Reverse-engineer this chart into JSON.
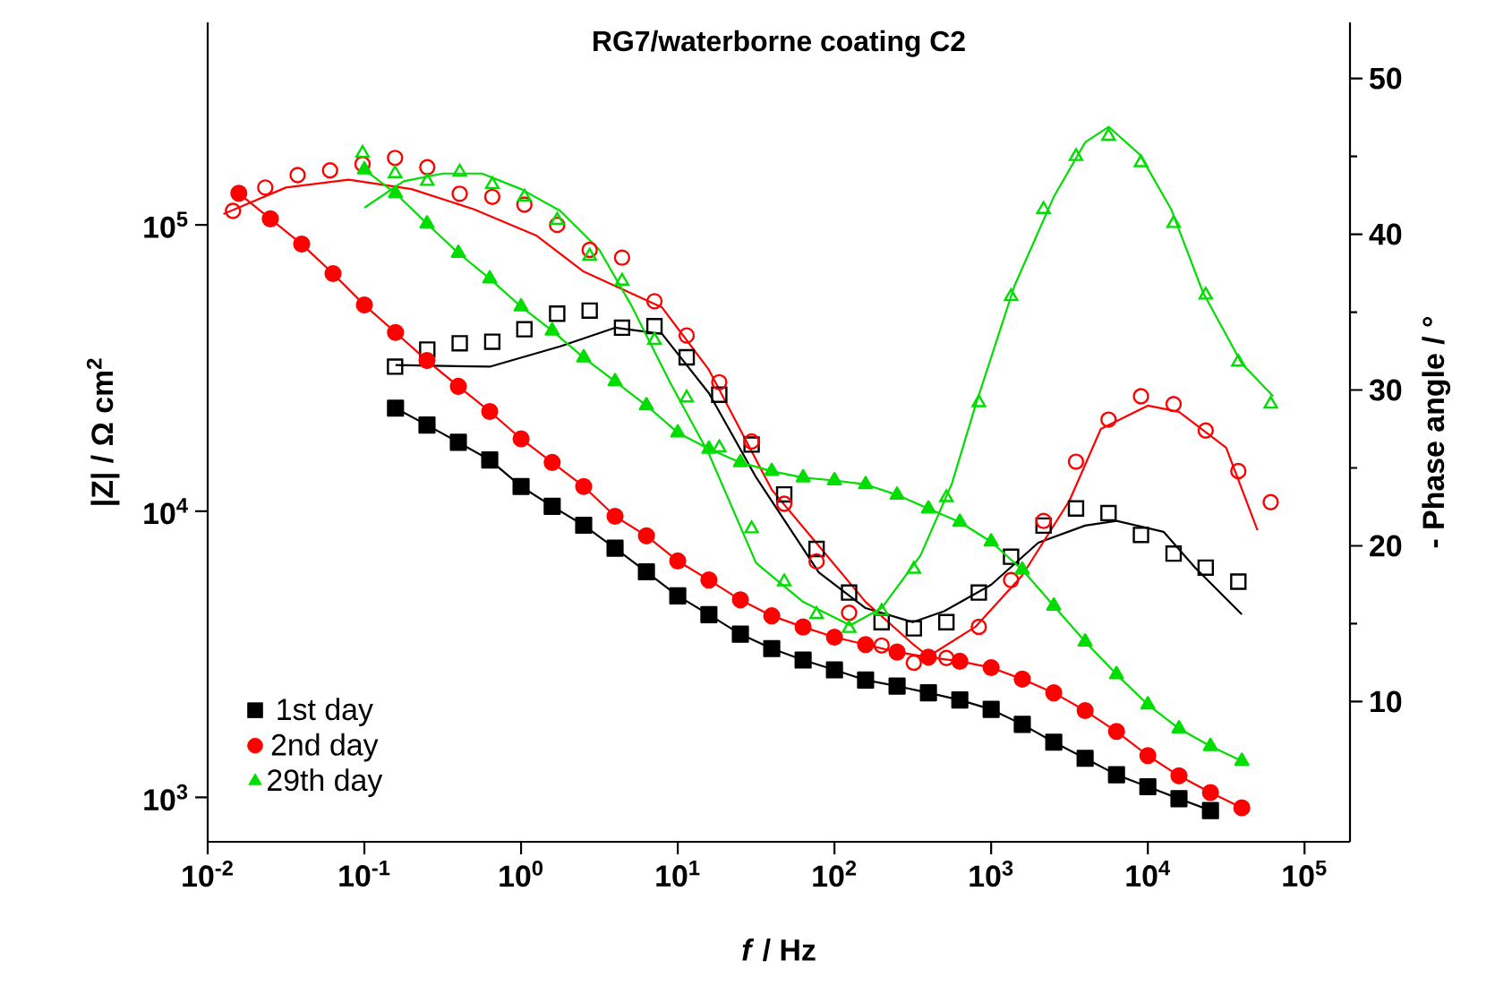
{
  "chart_data": {
    "type": "line",
    "title": "RG7/waterborne coating C2",
    "xlabel": "*f* / Hz",
    "ylabel": "|Z| / Ω cm$^{2}$",
    "y2label": "- Phase angle / °",
    "log": "xy",
    "legend": "bottom left",
    "xlim": [
      0.01,
      195000
    ],
    "ylim": [
      700,
      510000
    ],
    "y2lim": [
      1,
      53.6
    ],
    "xticks": [
      {
        "value": 0.01,
        "label": "10$^{-2}$"
      },
      {
        "value": 0.1,
        "label": "10$^{-1}$"
      },
      {
        "value": 1,
        "label": "10$^{0}$"
      },
      {
        "value": 10,
        "label": "10$^{1}$"
      },
      {
        "value": 100,
        "label": "10$^{2}$"
      },
      {
        "value": 1000,
        "label": "10$^{3}$"
      },
      {
        "value": 10000,
        "label": "10$^{4}$"
      },
      {
        "value": 100000,
        "label": "10$^{5}$"
      }
    ],
    "yticks": [
      {
        "value": 1000,
        "label": "10$^{3}$"
      },
      {
        "value": 10000,
        "label": "10$^{4}$"
      },
      {
        "value": 100000,
        "label": "10$^{5}$"
      }
    ],
    "y2ticks": [
      10,
      20,
      30,
      40,
      50
    ],
    "series": [
      {
        "name": "1st day",
        "marker": "square",
        "color": "#000000",
        "x": [
          0.158,
          0.251,
          0.398,
          0.631,
          1,
          1.58,
          2.51,
          3.98,
          6.31,
          10,
          15.8,
          25.1,
          39.8,
          63.1,
          100,
          158,
          251,
          398,
          631,
          1000,
          1580,
          2510,
          3980,
          6310,
          10000,
          15800,
          25100
        ],
        "values": [
          22900,
          20000,
          17400,
          15100,
          12200,
          10400,
          8930,
          7430,
          6140,
          5060,
          4350,
          3720,
          3310,
          3020,
          2790,
          2570,
          2450,
          2320,
          2190,
          2030,
          1800,
          1560,
          1370,
          1200,
          1090,
          990,
          900
        ]
      },
      {
        "name": "2nd day",
        "marker": "circle",
        "color": "#ff0000",
        "x": [
          0.0158,
          0.0251,
          0.0398,
          0.0631,
          0.1,
          0.158,
          0.251,
          0.398,
          0.631,
          1,
          1.58,
          2.51,
          3.98,
          6.31,
          10,
          15.8,
          25.1,
          39.8,
          63.1,
          100,
          158,
          251,
          398,
          631,
          1000,
          1580,
          2510,
          3980,
          6310,
          10000,
          15800,
          25100,
          39800
        ],
        "values": [
          129000,
          105000,
          85700,
          67600,
          52500,
          42100,
          33600,
          27300,
          22300,
          17900,
          14800,
          12200,
          9600,
          8200,
          6700,
          5750,
          4900,
          4310,
          3940,
          3630,
          3420,
          3220,
          3090,
          2990,
          2840,
          2590,
          2320,
          2010,
          1700,
          1400,
          1190,
          1040,
          920
        ]
      },
      {
        "name": "29th day",
        "marker": "triangle",
        "color": "#00dd00",
        "x": [
          0.1,
          0.158,
          0.251,
          0.398,
          0.631,
          1,
          1.58,
          2.51,
          3.98,
          6.31,
          10,
          15.8,
          25.1,
          39.8,
          63.1,
          100,
          158,
          251,
          398,
          631,
          1000,
          1580,
          2510,
          3980,
          6310,
          10000,
          15800,
          25100,
          39800
        ],
        "values": [
          156000,
          129000,
          101000,
          79800,
          64900,
          51800,
          42700,
          34400,
          28400,
          23400,
          18800,
          16500,
          14800,
          13800,
          13100,
          12800,
          12400,
          11400,
          10200,
          9160,
          7820,
          6240,
          4670,
          3500,
          2690,
          2110,
          1740,
          1510,
          1340
        ]
      },
      {
        "type": "scatter",
        "axis": "y2",
        "marker": "square",
        "color": "#000000",
        "x": [
          0.157,
          0.252,
          0.406,
          0.655,
          1.05,
          1.7,
          2.74,
          4.41,
          7.1,
          11.4,
          18.4,
          29.6,
          47.8,
          76.9,
          124,
          200,
          321,
          518,
          834,
          1340,
          2160,
          3480,
          5610,
          9040,
          14600,
          23400,
          37800
        ],
        "values": [
          31.5,
          32.6,
          33.0,
          33.1,
          33.9,
          34.9,
          35.1,
          34.0,
          34.1,
          32.1,
          29.7,
          26.5,
          23.3,
          19.8,
          17.0,
          15.1,
          14.7,
          15.1,
          17.0,
          19.3,
          21.3,
          22.4,
          22.1,
          20.7,
          19.5,
          18.6,
          17.7
        ]
      },
      {
        "type": "scatter",
        "axis": "y2",
        "marker": "circle",
        "color": "#ff0000",
        "x": [
          0.0145,
          0.0233,
          0.0375,
          0.0604,
          0.0973,
          0.157,
          0.252,
          0.406,
          0.655,
          1.05,
          1.7,
          2.74,
          4.41,
          7.1,
          11.4,
          18.4,
          29.6,
          47.8,
          76.9,
          124,
          200,
          321,
          518,
          834,
          1340,
          2160,
          3480,
          5610,
          9040,
          14600,
          23400,
          37800,
          60800
        ],
        "values": [
          41.5,
          43.0,
          43.8,
          44.1,
          44.5,
          44.9,
          44.3,
          42.6,
          42.4,
          41.9,
          40.6,
          39.0,
          38.5,
          35.7,
          33.5,
          30.5,
          26.7,
          22.7,
          19.0,
          15.7,
          13.6,
          12.5,
          12.8,
          14.8,
          17.8,
          21.6,
          25.4,
          28.1,
          29.6,
          29.1,
          27.4,
          24.8,
          22.8
        ]
      },
      {
        "type": "scatter",
        "axis": "y2",
        "marker": "triangle",
        "color": "#00dd00",
        "x": [
          0.0973,
          0.157,
          0.252,
          0.406,
          0.655,
          1.05,
          1.7,
          2.74,
          4.41,
          7.1,
          11.4,
          18.4,
          29.6,
          47.8,
          76.9,
          124,
          200,
          321,
          518,
          834,
          1340,
          2160,
          3480,
          5610,
          9040,
          14600,
          23400,
          37800,
          60800
        ],
        "values": [
          45.2,
          43.9,
          43.4,
          44.0,
          43.2,
          42.4,
          40.9,
          38.6,
          37.0,
          33.2,
          29.5,
          26.3,
          21.1,
          17.7,
          15.6,
          14.7,
          15.8,
          18.5,
          23.1,
          29.2,
          36.0,
          41.6,
          45.0,
          46.3,
          44.6,
          40.7,
          36.1,
          31.8,
          29.1
        ]
      },
      {
        "axis": "y2",
        "marker": "none",
        "color": "#000000",
        "x": [
          0.158,
          0.631,
          1.78,
          3.98,
          7.94,
          15.8,
          31.6,
          79.4,
          158,
          316,
          501,
          1000,
          2000,
          3980,
          6310,
          12600,
          20000,
          39800
        ],
        "values": [
          31.6,
          31.5,
          32.8,
          34.0,
          33.6,
          29.8,
          24.4,
          18.3,
          16.0,
          15.1,
          15.8,
          17.5,
          20.2,
          21.3,
          21.6,
          20.9,
          18.6,
          15.6
        ]
      },
      {
        "axis": "y2",
        "marker": "none",
        "color": "#ff0000",
        "x": [
          0.0126,
          0.0316,
          0.0794,
          0.2,
          0.501,
          1.26,
          2.51,
          7.94,
          15.8,
          39.8,
          79.4,
          158,
          316,
          398,
          794,
          1580,
          3160,
          5010,
          10000,
          15800,
          31600,
          50100
        ],
        "values": [
          41.3,
          43.0,
          43.5,
          42.9,
          41.6,
          39.9,
          37.6,
          35.3,
          31.3,
          23.6,
          20.0,
          16.4,
          13.7,
          12.9,
          14.8,
          18.1,
          22.9,
          27.5,
          29.0,
          28.6,
          26.3,
          21.0
        ]
      },
      {
        "axis": "y2",
        "marker": "none",
        "color": "#00dd00",
        "x": [
          0.1,
          0.178,
          0.316,
          0.562,
          1,
          1.78,
          3.16,
          5.01,
          8.91,
          15.8,
          31.6,
          63.1,
          126,
          200,
          355,
          562,
          794,
          1410,
          2510,
          3980,
          5620,
          8910,
          14100,
          22400,
          39800,
          63100
        ],
        "values": [
          41.7,
          43.4,
          43.9,
          43.9,
          42.9,
          41.5,
          39.0,
          35.5,
          30.5,
          25.9,
          18.9,
          16.4,
          14.9,
          16.0,
          19.4,
          24.0,
          29.0,
          36.7,
          42.4,
          45.9,
          46.9,
          45.1,
          41.6,
          36.3,
          31.7,
          29.6
        ]
      }
    ]
  }
}
